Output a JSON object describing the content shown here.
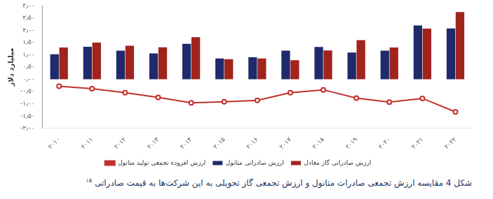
{
  "chart_data": {
    "type": "bar",
    "title": "شکل 4 مقایسه ارزش تجمعی صادرات متانول و ارزش تجمعی گاز تحویلی به این شرکت‌ها به قیمت صادراتی",
    "annotations": [
      "۱۵"
    ],
    "y_label": "میلیارد دلار",
    "categories": [
      "۲۰۱۰",
      "۲۰۱۱",
      "۲۰۱۲",
      "۲۰۱۳",
      "۲۰۱۴",
      "۲۰۱۵",
      "۲۰۱۶",
      "۲۰۱۷",
      "۲۰۱۸",
      "۲۰۱۹",
      "۲۰۲۰",
      "۲۰۲۱",
      "۲۰۲۲"
    ],
    "series": [
      {
        "name": "ارزش صادراتی متانول",
        "type": "bar",
        "color": "#1f2a6b",
        "values": [
          1.02,
          1.33,
          1.17,
          1.06,
          1.45,
          0.85,
          0.9,
          1.17,
          1.32,
          1.09,
          1.17,
          2.2,
          2.08
        ]
      },
      {
        "name": "ارزش صادراتی گاز معادل",
        "type": "bar",
        "color": "#a0241c",
        "values": [
          1.3,
          1.5,
          1.37,
          1.31,
          1.72,
          0.82,
          0.85,
          0.78,
          1.18,
          1.6,
          1.3,
          2.07,
          2.75
        ]
      },
      {
        "name": "ارزش افزوده تجمعی تولید متانول",
        "type": "line",
        "color": "#c0302a",
        "marker": "circle",
        "line_style": "solid",
        "values": [
          -0.28,
          -0.38,
          -0.55,
          -0.74,
          -0.96,
          -0.92,
          -0.86,
          -0.55,
          -0.43,
          -0.77,
          -0.93,
          -0.78,
          -1.33
        ]
      }
    ],
    "ylim": [
      -2,
      3
    ],
    "yticks": [
      {
        "value": -2,
        "label": "-۲٫۰۰"
      },
      {
        "value": -1.5,
        "label": "-۱٫۵۰"
      },
      {
        "value": -1,
        "label": "-۱٫۰۰"
      },
      {
        "value": -0.5,
        "label": "-۰٫۵۰"
      },
      {
        "value": 0,
        "label": "۰٫۰۰"
      },
      {
        "value": 0.5,
        "label": "۰٫۵۰"
      },
      {
        "value": 1,
        "label": "۱٫۰۰"
      },
      {
        "value": 1.5,
        "label": "۱٫۵۰"
      },
      {
        "value": 2,
        "label": "۲٫۰۰"
      },
      {
        "value": 2.5,
        "label": "۲٫۵۰"
      },
      {
        "value": 3,
        "label": "۳٫۰۰"
      }
    ],
    "grid": false,
    "legend": "bottom"
  }
}
